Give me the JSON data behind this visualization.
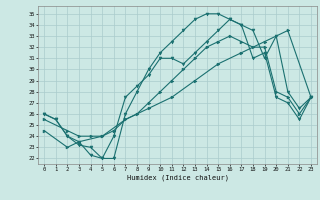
{
  "xlabel": "Humidex (Indice chaleur)",
  "bg_color": "#cce8e4",
  "grid_color": "#aacccc",
  "line_color": "#1a7070",
  "xlim": [
    -0.5,
    23.5
  ],
  "ylim": [
    21.5,
    35.7
  ],
  "yticks": [
    22,
    23,
    24,
    25,
    26,
    27,
    28,
    29,
    30,
    31,
    32,
    33,
    34,
    35
  ],
  "xticks": [
    0,
    1,
    2,
    3,
    4,
    5,
    6,
    7,
    8,
    9,
    10,
    11,
    12,
    13,
    14,
    15,
    16,
    17,
    18,
    19,
    20,
    21,
    22,
    23
  ],
  "series1_x": [
    0,
    1,
    2,
    3,
    4,
    5,
    6,
    7,
    8,
    9,
    10,
    11,
    12,
    13,
    14,
    15,
    16,
    17,
    18,
    19,
    20,
    21,
    22,
    23
  ],
  "series1_y": [
    26.0,
    25.5,
    24.0,
    23.5,
    22.3,
    22.0,
    22.0,
    26.0,
    28.0,
    30.0,
    31.5,
    32.5,
    33.5,
    34.5,
    35.0,
    35.0,
    34.5,
    34.0,
    33.5,
    31.0,
    33.0,
    28.0,
    26.5,
    27.5
  ],
  "series2_x": [
    0,
    1,
    2,
    3,
    4,
    5,
    6,
    7,
    8,
    9,
    10,
    11,
    12,
    13,
    14,
    15,
    16,
    17,
    18,
    19,
    20,
    21,
    22,
    23
  ],
  "series2_y": [
    26.0,
    25.5,
    24.0,
    23.2,
    23.0,
    22.0,
    24.0,
    27.5,
    28.5,
    29.5,
    31.0,
    31.0,
    30.5,
    31.5,
    32.5,
    33.5,
    34.5,
    34.0,
    31.0,
    31.5,
    27.5,
    27.0,
    25.5,
    27.5
  ],
  "series3_x": [
    0,
    2,
    3,
    4,
    5,
    6,
    7,
    8,
    9,
    10,
    11,
    12,
    13,
    14,
    15,
    16,
    17,
    18,
    19,
    20,
    21,
    22,
    23
  ],
  "series3_y": [
    25.5,
    24.5,
    24.0,
    24.0,
    24.0,
    24.5,
    25.5,
    26.0,
    27.0,
    28.0,
    29.0,
    30.0,
    31.0,
    32.0,
    32.5,
    33.0,
    32.5,
    32.0,
    32.0,
    28.0,
    27.5,
    26.0,
    27.5
  ],
  "series4_x": [
    0,
    2,
    3,
    5,
    7,
    9,
    11,
    13,
    15,
    17,
    19,
    21,
    23
  ],
  "series4_y": [
    24.5,
    23.0,
    23.5,
    24.0,
    25.5,
    26.5,
    27.5,
    29.0,
    30.5,
    31.5,
    32.5,
    33.5,
    27.5
  ]
}
